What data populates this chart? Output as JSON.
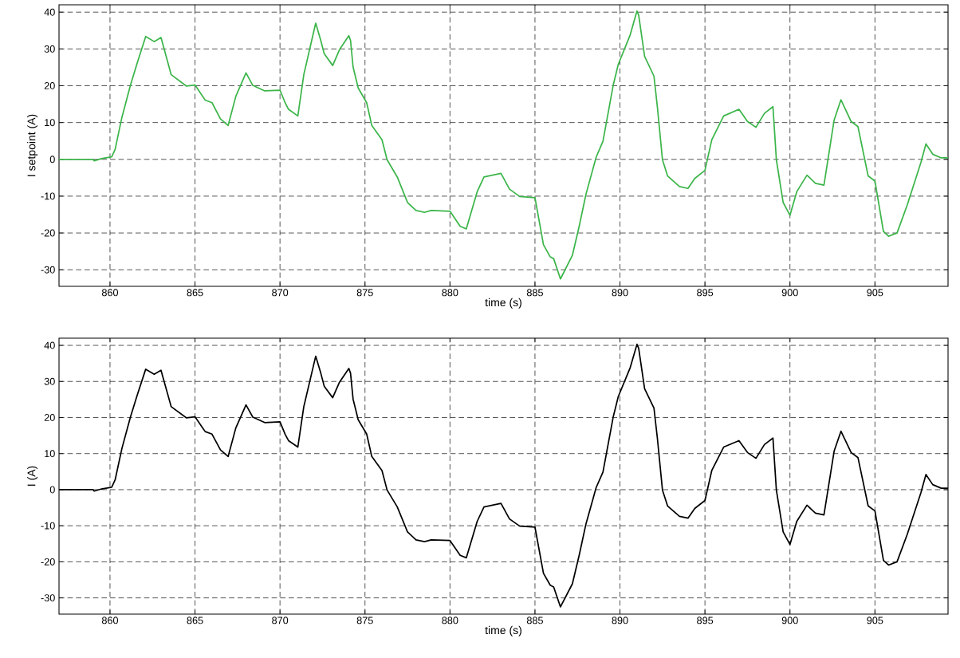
{
  "chart_data": [
    {
      "type": "line",
      "xlabel": "time (s)",
      "ylabel": "I setpoint (A)",
      "xlim": [
        857,
        909.3
      ],
      "ylim": [
        -34.5,
        42
      ],
      "xticks": [
        860,
        865,
        870,
        875,
        880,
        885,
        890,
        895,
        900,
        905
      ],
      "yticks": [
        -30,
        -20,
        -10,
        0,
        10,
        20,
        30,
        40
      ],
      "grid": true,
      "series": [
        {
          "color": "#3cb54a",
          "x": [
            857,
            859,
            859.07,
            859.5,
            860.1,
            860.3,
            860.7,
            861.2,
            861.6,
            862.1,
            862.6,
            863,
            863.6,
            864.5,
            865,
            865.6,
            866,
            866.5,
            866.95,
            867.4,
            868,
            868.4,
            869.1,
            870,
            870.3,
            870.5,
            871.05,
            871.4,
            872.1,
            872.4,
            872.6,
            873.1,
            873.5,
            874.05,
            874.15,
            874.3,
            874.6,
            875.1,
            875.4,
            876,
            876.3,
            876.9,
            877.5,
            878,
            878.5,
            878.9,
            880,
            880.6,
            880.96,
            881.6,
            882,
            883,
            883.5,
            884.1,
            885,
            885.5,
            885.9,
            886.1,
            886.5,
            887.2,
            887.6,
            888,
            888.6,
            889,
            889.6,
            889.9,
            890.6,
            891,
            891.1,
            891.45,
            892,
            892.2,
            892.5,
            892.8,
            893.5,
            894,
            894.4,
            895,
            895.4,
            896.1,
            897,
            897.5,
            898,
            898.5,
            899,
            899.2,
            899.6,
            900,
            900.4,
            901,
            901.5,
            902,
            902.6,
            903,
            903.6,
            904,
            904.6,
            905,
            905.5,
            905.8,
            906.3,
            906.9,
            907.7,
            908,
            908.4,
            908.9,
            909.3
          ],
          "values": [
            0,
            0,
            -0.4,
            0.2,
            0.7,
            2.7,
            11.4,
            20.1,
            26.2,
            33.4,
            32,
            33.1,
            23,
            19.9,
            20.2,
            16.1,
            15.4,
            11,
            9.2,
            17.1,
            23.5,
            20.1,
            18.6,
            18.8,
            15.4,
            13.6,
            11.8,
            23,
            37,
            32.3,
            28.7,
            25.5,
            29.8,
            33.6,
            32.3,
            25.1,
            19.4,
            15.4,
            9.2,
            5.3,
            -0.1,
            -4.8,
            -11.7,
            -13.9,
            -14.4,
            -13.9,
            -14.1,
            -18.2,
            -18.9,
            -8.8,
            -4.8,
            -3.8,
            -8.1,
            -10.1,
            -10.4,
            -23.2,
            -26.5,
            -27,
            -32.5,
            -26.1,
            -18.2,
            -9.5,
            0.6,
            4.9,
            20.1,
            25.8,
            33.8,
            40.3,
            39.2,
            28,
            22.6,
            14.3,
            -0.1,
            -4.5,
            -7.4,
            -7.9,
            -5.2,
            -3,
            5.3,
            11.8,
            13.6,
            10.3,
            8.7,
            12.5,
            14.3,
            -0.1,
            -11.7,
            -15.2,
            -8.8,
            -4.3,
            -6.5,
            -7,
            10.7,
            16.2,
            10.3,
            8.9,
            -4.5,
            -5.9,
            -19.6,
            -20.9,
            -20,
            -12.4,
            -0.9,
            4.2,
            1.4,
            0.4,
            0.4
          ]
        }
      ]
    },
    {
      "type": "line",
      "xlabel": "time (s)",
      "ylabel": "I (A)",
      "xlim": [
        857,
        909.3
      ],
      "ylim": [
        -34.5,
        42
      ],
      "xticks": [
        860,
        865,
        870,
        875,
        880,
        885,
        890,
        895,
        900,
        905
      ],
      "yticks": [
        -30,
        -20,
        -10,
        0,
        10,
        20,
        30,
        40
      ],
      "grid": true,
      "series": [
        {
          "color": "#000000",
          "x": [
            857,
            859,
            859.07,
            859.5,
            860.1,
            860.3,
            860.7,
            861.2,
            861.6,
            862.1,
            862.6,
            863,
            863.6,
            864.5,
            865,
            865.6,
            866,
            866.5,
            866.95,
            867.4,
            868,
            868.4,
            869.1,
            870,
            870.3,
            870.5,
            871.05,
            871.4,
            872.1,
            872.4,
            872.6,
            873.1,
            873.5,
            874.05,
            874.15,
            874.3,
            874.6,
            875.1,
            875.4,
            876,
            876.3,
            876.9,
            877.5,
            878,
            878.5,
            878.9,
            880,
            880.6,
            880.96,
            881.6,
            882,
            883,
            883.5,
            884.1,
            885,
            885.5,
            885.9,
            886.1,
            886.5,
            887.2,
            887.6,
            888,
            888.6,
            889,
            889.6,
            889.9,
            890.6,
            891,
            891.1,
            891.45,
            892,
            892.2,
            892.5,
            892.8,
            893.5,
            894,
            894.4,
            895,
            895.4,
            896.1,
            897,
            897.5,
            898,
            898.5,
            899,
            899.2,
            899.6,
            900,
            900.4,
            901,
            901.5,
            902,
            902.6,
            903,
            903.6,
            904,
            904.6,
            905,
            905.5,
            905.8,
            906.3,
            906.9,
            907.7,
            908,
            908.4,
            908.9,
            909.3
          ],
          "values": [
            0,
            0,
            -0.4,
            0.2,
            0.7,
            2.7,
            11.4,
            20.1,
            26.2,
            33.4,
            32,
            33.1,
            23,
            19.9,
            20.2,
            16.1,
            15.4,
            11,
            9.2,
            17.1,
            23.5,
            20.1,
            18.6,
            18.8,
            15.4,
            13.6,
            11.8,
            23,
            37,
            32.3,
            28.7,
            25.5,
            29.8,
            33.6,
            32.3,
            25.1,
            19.4,
            15.4,
            9.2,
            5.3,
            -0.1,
            -4.8,
            -11.7,
            -13.9,
            -14.4,
            -13.9,
            -14.1,
            -18.2,
            -18.9,
            -8.8,
            -4.8,
            -3.8,
            -8.1,
            -10.1,
            -10.4,
            -23.2,
            -26.5,
            -27,
            -32.5,
            -26.1,
            -18.2,
            -9.5,
            0.6,
            4.9,
            20.1,
            25.8,
            33.8,
            40.3,
            39.2,
            28,
            22.6,
            14.3,
            -0.1,
            -4.5,
            -7.4,
            -7.9,
            -5.2,
            -3,
            5.3,
            11.8,
            13.6,
            10.3,
            8.7,
            12.5,
            14.3,
            -0.1,
            -11.7,
            -15.2,
            -8.8,
            -4.3,
            -6.5,
            -7,
            10.7,
            16.2,
            10.3,
            8.9,
            -4.5,
            -5.9,
            -19.6,
            -20.9,
            -20,
            -12.4,
            -0.9,
            4.2,
            1.4,
            0.4,
            0.4
          ]
        }
      ]
    }
  ]
}
